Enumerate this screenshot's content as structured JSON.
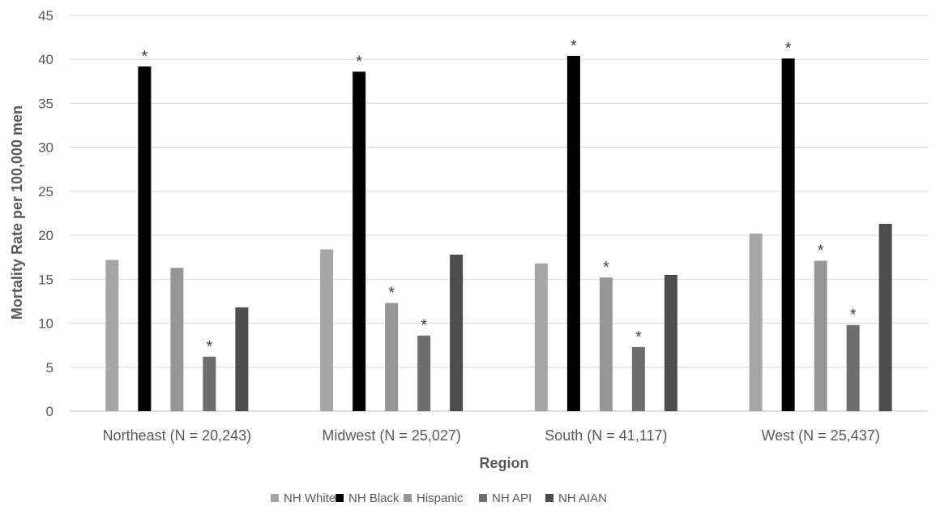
{
  "chart_data": {
    "type": "bar",
    "title": "",
    "xlabel": "Region",
    "ylabel": "Mortality Rate per 100,000 men",
    "ylim": [
      0,
      45
    ],
    "yticks": [
      0,
      5,
      10,
      15,
      20,
      25,
      30,
      35,
      40,
      45
    ],
    "grid": true,
    "legend_position": "bottom",
    "categories": [
      "Northeast (N = 20,243)",
      "Midwest (N = 25,027)",
      "South (N = 41,117)",
      "West (N = 25,437)"
    ],
    "series": [
      {
        "name": "NH White",
        "color": "#a6a6a6",
        "values": [
          17.2,
          18.4,
          16.8,
          20.2
        ],
        "significant": [
          false,
          false,
          false,
          false
        ]
      },
      {
        "name": "NH Black",
        "color": "#000000",
        "values": [
          39.2,
          38.6,
          40.4,
          40.1
        ],
        "significant": [
          true,
          true,
          true,
          true
        ]
      },
      {
        "name": "Hispanic",
        "color": "#969696",
        "values": [
          16.3,
          12.3,
          15.2,
          17.1
        ],
        "significant": [
          false,
          true,
          true,
          true
        ]
      },
      {
        "name": "NH API",
        "color": "#6e6e6e",
        "values": [
          6.2,
          8.6,
          7.3,
          9.8
        ],
        "significant": [
          true,
          true,
          true,
          true
        ]
      },
      {
        "name": "NH AIAN",
        "color": "#4d4d4d",
        "values": [
          11.8,
          17.8,
          15.5,
          21.3
        ],
        "significant": [
          false,
          false,
          false,
          false
        ]
      }
    ],
    "significance_marker": "*"
  }
}
